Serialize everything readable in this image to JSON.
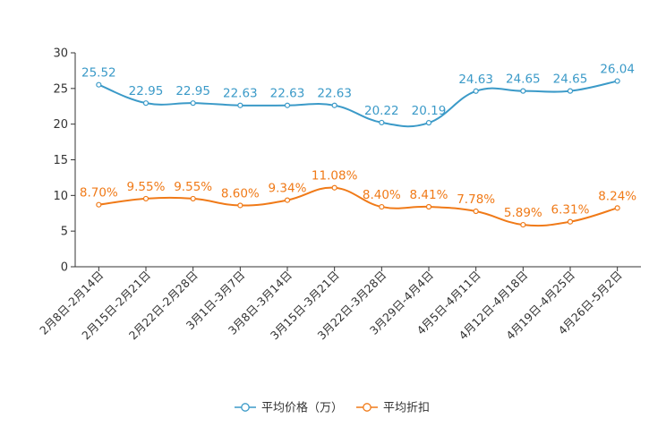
{
  "chart_data": {
    "type": "line",
    "categories": [
      "2月8日-2月14日",
      "2月15日-2月21日",
      "2月22日-2月28日",
      "3月1日-3月7日",
      "3月8日-3月14日",
      "3月15日-3月21日",
      "3月22日-3月28日",
      "3月29日-4月4日",
      "4月5日-4月11日",
      "4月12日-4月18日",
      "4月19日-4月25日",
      "4月26日-5月2日"
    ],
    "ylim": [
      0,
      30
    ],
    "yticks": [
      0,
      5,
      10,
      15,
      20,
      25,
      30
    ],
    "legend_position": "bottom-center",
    "series": [
      {
        "name": "平均价格（万）",
        "color": "#3b9ac8",
        "values": [
          25.52,
          22.95,
          22.95,
          22.63,
          22.63,
          22.63,
          20.22,
          20.19,
          24.63,
          24.65,
          24.65,
          26.04
        ],
        "labels": [
          "25.52",
          "22.95",
          "22.95",
          "22.63",
          "22.63",
          "22.63",
          "20.22",
          "20.19",
          "24.63",
          "24.65",
          "24.65",
          "26.04"
        ]
      },
      {
        "name": "平均折扣",
        "color": "#f07a18",
        "values": [
          8.7,
          9.55,
          9.55,
          8.6,
          9.34,
          11.08,
          8.4,
          8.41,
          7.78,
          5.89,
          6.31,
          8.24
        ],
        "labels": [
          "8.70%",
          "9.55%",
          "9.55%",
          "8.60%",
          "9.34%",
          "11.08%",
          "8.40%",
          "8.41%",
          "7.78%",
          "5.89%",
          "6.31%",
          "8.24%"
        ]
      }
    ]
  }
}
